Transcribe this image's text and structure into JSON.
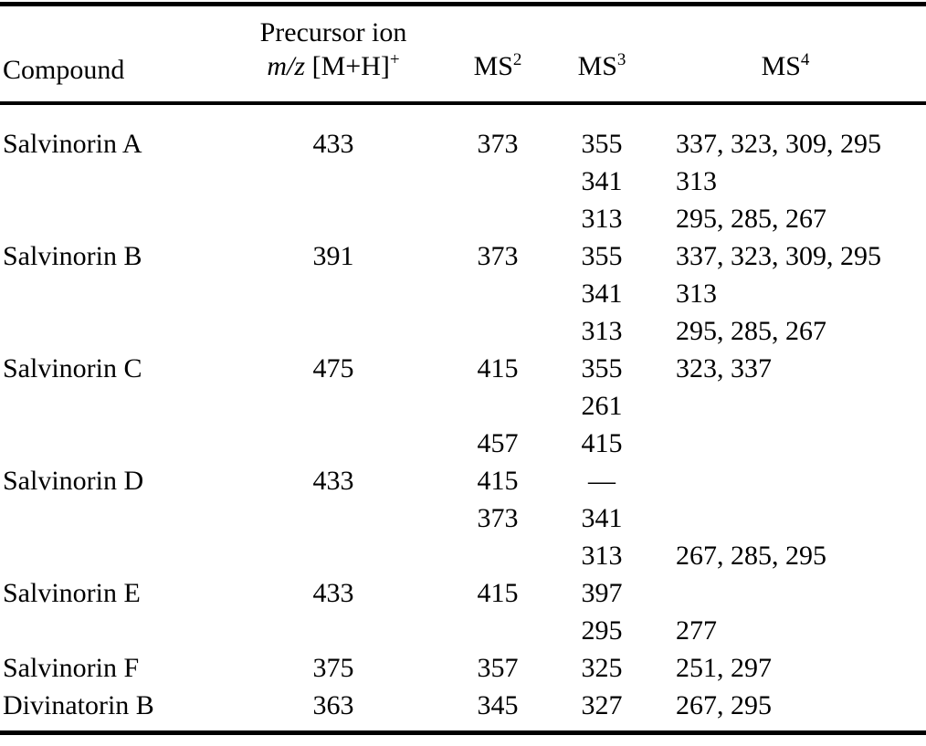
{
  "table": {
    "header": {
      "compound": "Compound",
      "precursor_line1": "Precursor ion",
      "precursor_italic": "m/z",
      "precursor_rest": " [M+H]",
      "precursor_sup": "+",
      "ms2_base": "MS",
      "ms2_sup": "2",
      "ms3_base": "MS",
      "ms3_sup": "3",
      "ms4_base": "MS",
      "ms4_sup": "4"
    },
    "rows": [
      {
        "compound": "Salvinorin A",
        "precursor": "433",
        "ms2": "373",
        "ms3": "355",
        "ms4": "337, 323, 309, 295"
      },
      {
        "compound": "",
        "precursor": "",
        "ms2": "",
        "ms3": "341",
        "ms4": "313"
      },
      {
        "compound": "",
        "precursor": "",
        "ms2": "",
        "ms3": "313",
        "ms4": "295, 285, 267"
      },
      {
        "compound": "Salvinorin B",
        "precursor": "391",
        "ms2": "373",
        "ms3": "355",
        "ms4": "337, 323, 309, 295"
      },
      {
        "compound": "",
        "precursor": "",
        "ms2": "",
        "ms3": "341",
        "ms4": "313"
      },
      {
        "compound": "",
        "precursor": "",
        "ms2": "",
        "ms3": "313",
        "ms4": "295, 285, 267"
      },
      {
        "compound": "Salvinorin C",
        "precursor": "475",
        "ms2": "415",
        "ms3": "355",
        "ms4": "323, 337"
      },
      {
        "compound": "",
        "precursor": "",
        "ms2": "",
        "ms3": "261",
        "ms4": ""
      },
      {
        "compound": "",
        "precursor": "",
        "ms2": "457",
        "ms3": "415",
        "ms4": ""
      },
      {
        "compound": "Salvinorin D",
        "precursor": "433",
        "ms2": "415",
        "ms3": "—",
        "ms4": ""
      },
      {
        "compound": "",
        "precursor": "",
        "ms2": "373",
        "ms3": "341",
        "ms4": ""
      },
      {
        "compound": "",
        "precursor": "",
        "ms2": "",
        "ms3": "313",
        "ms4": "267, 285, 295"
      },
      {
        "compound": "Salvinorin E",
        "precursor": "433",
        "ms2": "415",
        "ms3": "397",
        "ms4": ""
      },
      {
        "compound": "",
        "precursor": "",
        "ms2": "",
        "ms3": "295",
        "ms4": "277"
      },
      {
        "compound": "Salvinorin F",
        "precursor": "375",
        "ms2": "357",
        "ms3": "325",
        "ms4": "251, 297"
      },
      {
        "compound": "Divinatorin B",
        "precursor": "363",
        "ms2": "345",
        "ms3": "327",
        "ms4": "267, 295"
      }
    ],
    "colors": {
      "text": "#000000",
      "background": "#ffffff",
      "rule": "#000000"
    }
  }
}
